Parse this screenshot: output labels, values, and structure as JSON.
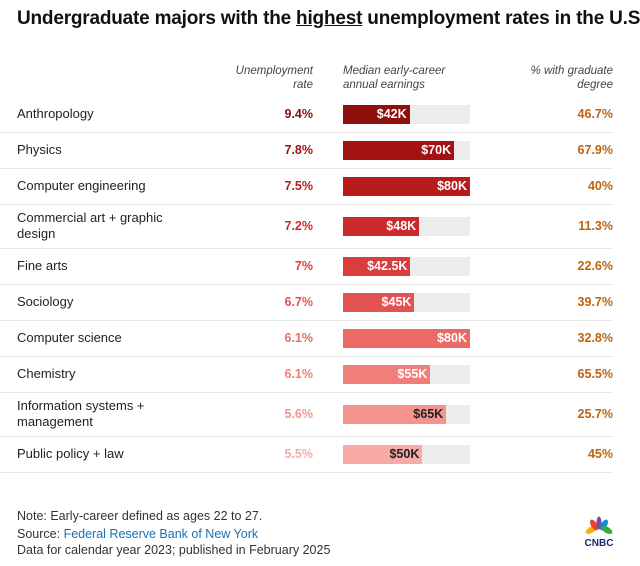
{
  "title": {
    "before": "Undergraduate majors with the ",
    "highlight": "highest",
    "after": " unemployment rates in the U.S."
  },
  "chart_data": {
    "type": "table",
    "columns": [
      "Unemployment rate",
      "Median early-career annual earnings",
      "% with graduate degree"
    ],
    "bar_max": 80,
    "rows": [
      {
        "major": "Anthropology",
        "rate": "9.4%",
        "earnings": 42,
        "earnings_label": "$42K",
        "grad": "46.7%",
        "color": "#8f0f0f",
        "text": "#fff"
      },
      {
        "major": "Physics",
        "rate": "7.8%",
        "earnings": 70,
        "earnings_label": "$70K",
        "grad": "67.9%",
        "color": "#a31212",
        "text": "#fff"
      },
      {
        "major": "Computer engineering",
        "rate": "7.5%",
        "earnings": 80,
        "earnings_label": "$80K",
        "grad": "40%",
        "color": "#b71b1b",
        "text": "#fff"
      },
      {
        "major": "Commercial art + graphic design",
        "rate": "7.2%",
        "earnings": 48,
        "earnings_label": "$48K",
        "grad": "11.3%",
        "color": "#cc2a2a",
        "text": "#fff"
      },
      {
        "major": "Fine arts",
        "rate": "7%",
        "earnings": 42.5,
        "earnings_label": "$42.5K",
        "grad": "22.6%",
        "color": "#d93d3d",
        "text": "#fff"
      },
      {
        "major": "Sociology",
        "rate": "6.7%",
        "earnings": 45,
        "earnings_label": "$45K",
        "grad": "39.7%",
        "color": "#e35353",
        "text": "#fff"
      },
      {
        "major": "Computer science",
        "rate": "6.1%",
        "earnings": 80,
        "earnings_label": "$80K",
        "grad": "32.8%",
        "color": "#ec6a66",
        "text": "#fff"
      },
      {
        "major": "Chemistry",
        "rate": "6.1%",
        "earnings": 55,
        "earnings_label": "$55K",
        "grad": "65.5%",
        "color": "#f07f7a",
        "text": "#fff"
      },
      {
        "major": "Information systems + management",
        "rate": "5.6%",
        "earnings": 65,
        "earnings_label": "$65K",
        "grad": "25.7%",
        "color": "#f5948f",
        "text": "#222"
      },
      {
        "major": "Public policy + law",
        "rate": "5.5%",
        "earnings": 50,
        "earnings_label": "$50K",
        "grad": "45%",
        "color": "#f8aaa6",
        "text": "#222"
      }
    ]
  },
  "headers": {
    "rate": [
      "Unemployment",
      "rate"
    ],
    "earnings": [
      "Median early-career",
      "annual earnings"
    ],
    "grad": [
      "% with graduate",
      "degree"
    ]
  },
  "footer": {
    "note": "Note: Early-career defined as ages 22 to 27.",
    "source_label": "Source: ",
    "source_link": "Federal Reserve Bank of New York",
    "data": "Data for calendar year 2023; published in February 2025"
  },
  "logo": "CNBC"
}
